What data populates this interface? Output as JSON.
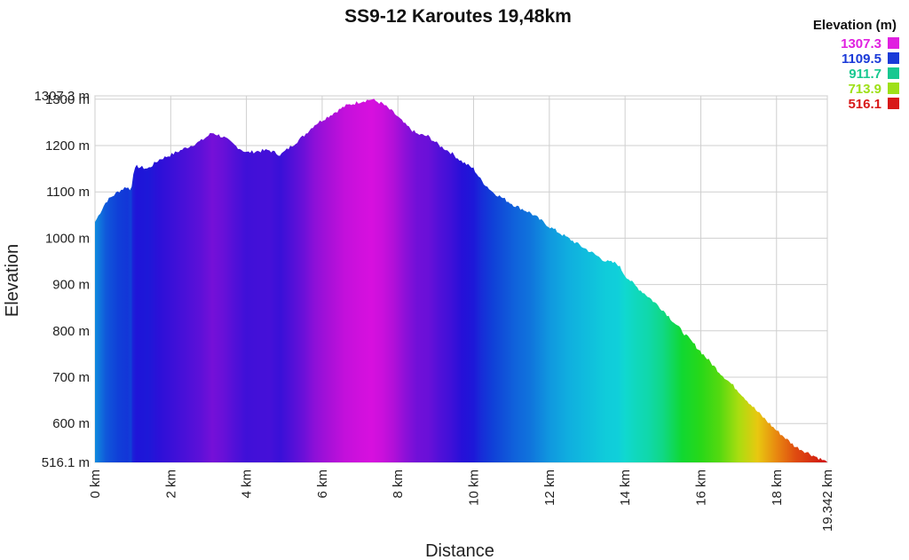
{
  "chart_data": {
    "type": "area",
    "title": "SS9-12 Karoutes 19,48km",
    "xlabel": "Distance",
    "ylabel": "Elevation",
    "xlim": [
      0,
      19.342
    ],
    "ylim": [
      516.1,
      1307.3
    ],
    "x_ticks": [
      {
        "value": 0,
        "label": "0 km"
      },
      {
        "value": 2,
        "label": "2 km"
      },
      {
        "value": 4,
        "label": "4 km"
      },
      {
        "value": 6,
        "label": "6 km"
      },
      {
        "value": 8,
        "label": "8 km"
      },
      {
        "value": 10,
        "label": "10 km"
      },
      {
        "value": 12,
        "label": "12 km"
      },
      {
        "value": 14,
        "label": "14 km"
      },
      {
        "value": 16,
        "label": "16 km"
      },
      {
        "value": 18,
        "label": "18 km"
      },
      {
        "value": 19.342,
        "label": "19.342 km"
      }
    ],
    "y_ticks": [
      {
        "value": 516.1,
        "label": "516.1 m"
      },
      {
        "value": 600,
        "label": "600 m"
      },
      {
        "value": 700,
        "label": "700 m"
      },
      {
        "value": 800,
        "label": "800 m"
      },
      {
        "value": 900,
        "label": "900 m"
      },
      {
        "value": 1000,
        "label": "1000 m"
      },
      {
        "value": 1100,
        "label": "1100 m"
      },
      {
        "value": 1200,
        "label": "1200 m"
      },
      {
        "value": 1300,
        "label": "1300 m"
      },
      {
        "value": 1307.3,
        "label": "1307.3 m"
      }
    ],
    "grid": true,
    "legend": {
      "title": "Elevation (m)",
      "placement": "top-right",
      "entries": [
        {
          "label": "1307.3",
          "color": "#e020e0"
        },
        {
          "label": "1109.5",
          "color": "#1a3ad8"
        },
        {
          "label": "911.7",
          "color": "#18c890"
        },
        {
          "label": "713.9",
          "color": "#9ee018"
        },
        {
          "label": "516.1",
          "color": "#d81818"
        }
      ]
    },
    "color_scale": [
      {
        "value": 516.1,
        "color": "#d01010"
      },
      {
        "value": 570,
        "color": "#e87010"
      },
      {
        "value": 640,
        "color": "#e8e010"
      },
      {
        "value": 720,
        "color": "#40d810"
      },
      {
        "value": 790,
        "color": "#10d820"
      },
      {
        "value": 860,
        "color": "#10d8a0"
      },
      {
        "value": 930,
        "color": "#10d8d8"
      },
      {
        "value": 1010,
        "color": "#10a8e0"
      },
      {
        "value": 1100,
        "color": "#1040d8"
      },
      {
        "value": 1160,
        "color": "#2010d8"
      },
      {
        "value": 1220,
        "color": "#6a10d8"
      },
      {
        "value": 1270,
        "color": "#b010d8"
      },
      {
        "value": 1307.3,
        "color": "#e010e0"
      }
    ],
    "series": [
      {
        "x": [
          0,
          0.3,
          0.6,
          0.85,
          0.95,
          1.0,
          1.1,
          1.4,
          1.7,
          2.0,
          2.4,
          2.8,
          3.1,
          3.4,
          3.7,
          4.0,
          4.3,
          4.6,
          4.9,
          5.2,
          5.5,
          5.8,
          6.2,
          6.6,
          7.0,
          7.3,
          7.6,
          7.9,
          8.2,
          8.5,
          8.8,
          9.1,
          9.4,
          9.7,
          10.0,
          10.2,
          10.5,
          10.8,
          11.1,
          11.5,
          12.0,
          12.5,
          13.0,
          13.5,
          13.8,
          14.0,
          14.3,
          14.6,
          15.0,
          15.5,
          16.0,
          16.5,
          17.0,
          17.5,
          18.0,
          18.5,
          19.0,
          19.342
        ],
        "y": [
          1035,
          1080,
          1100,
          1112,
          1100,
          1140,
          1155,
          1150,
          1170,
          1180,
          1195,
          1210,
          1228,
          1218,
          1200,
          1185,
          1188,
          1190,
          1180,
          1200,
          1220,
          1245,
          1265,
          1285,
          1295,
          1300,
          1290,
          1270,
          1245,
          1225,
          1220,
          1200,
          1185,
          1165,
          1150,
          1125,
          1100,
          1085,
          1070,
          1055,
          1025,
          1000,
          975,
          950,
          945,
          920,
          895,
          875,
          845,
          800,
          755,
          710,
          670,
          625,
          585,
          550,
          530,
          516.1
        ]
      }
    ]
  }
}
